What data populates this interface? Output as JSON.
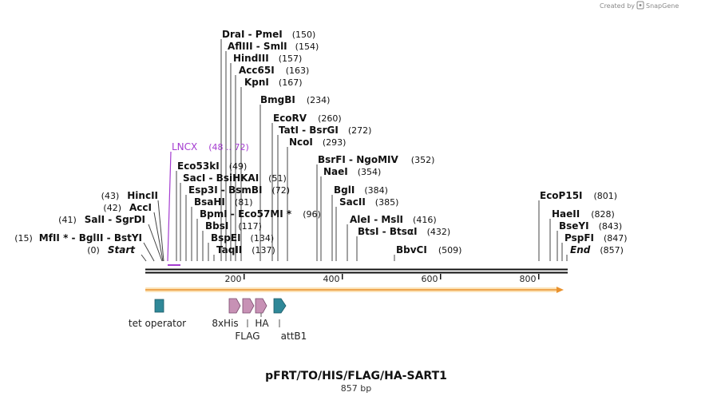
{
  "title": "pFRT/TO/HIS/FLAG/HA-SART1",
  "length_label": "857 bp",
  "brand": "Created by",
  "brand_name": "SnapGene",
  "ruler_ticks": [
    "200",
    "400",
    "600",
    "800"
  ],
  "enzymes": [
    {
      "name": "DraI",
      "pos": "(150)",
      "name2": "PmeI"
    },
    {
      "name": "AflIII",
      "pos": "(154)",
      "name2": "SmlI"
    },
    {
      "name": "HindIII",
      "pos": "(157)"
    },
    {
      "name": "Acc65I",
      "pos": "(163)"
    },
    {
      "name": "KpnI",
      "pos": "(167)"
    },
    {
      "name": "BmgBI",
      "pos": "(234)"
    },
    {
      "name": "EcoRV",
      "pos": "(260)"
    },
    {
      "name": "TatI",
      "pos": "(272)",
      "name2": "BsrGI"
    },
    {
      "name": "NcoI",
      "pos": "(293)"
    },
    {
      "name": "LNCX",
      "pos": "(48 .. 72)"
    },
    {
      "name": "Eco53kI",
      "pos": "(49)"
    },
    {
      "name": "SacI",
      "pos": "(51)",
      "name2": "BsiHKAI"
    },
    {
      "name": "Esp3I",
      "pos": "(72)",
      "name2": "BsmBI"
    },
    {
      "name": "BsaHI",
      "pos": "(81)"
    },
    {
      "name": "BpmI",
      "pos": "(96)",
      "name2": "Eco57MI *"
    },
    {
      "name": "BbsI",
      "pos": "(117)"
    },
    {
      "name": "BspEI",
      "pos": "(134)"
    },
    {
      "name": "TaqII",
      "pos": "(137)"
    },
    {
      "name": "BsrFI",
      "pos": "(352)",
      "name2": "NgoMIV"
    },
    {
      "name": "NaeI",
      "pos": "(354)"
    },
    {
      "name": "BglI",
      "pos": "(384)"
    },
    {
      "name": "SacII",
      "pos": "(385)"
    },
    {
      "name": "AleI",
      "pos": "(416)",
      "name2": "MslI"
    },
    {
      "name": "BtsI",
      "pos": "(432)",
      "name2": "BtsαI"
    },
    {
      "name": "BbvCI",
      "pos": "(509)"
    },
    {
      "name": "HincII",
      "pos": "(43)"
    },
    {
      "name": "AccI",
      "pos": "(42)"
    },
    {
      "name": "SalI",
      "pos": "(41)",
      "name2": "SgrDI"
    },
    {
      "name": "MfII *",
      "pos": "(15)",
      "name2": "BglII",
      "name3": "BstYI"
    },
    {
      "name": "Start",
      "pos": "(0)"
    },
    {
      "name": "EcoP15I",
      "pos": "(801)"
    },
    {
      "name": "HaeII",
      "pos": "(828)"
    },
    {
      "name": "BseYI",
      "pos": "(843)"
    },
    {
      "name": "PspFI",
      "pos": "(847)"
    },
    {
      "name": "End",
      "pos": "(857)"
    }
  ],
  "features": [
    {
      "name": "tet operator"
    },
    {
      "name": "8xHis"
    },
    {
      "name": "FLAG"
    },
    {
      "name": "HA"
    },
    {
      "name": "attB1"
    }
  ]
}
